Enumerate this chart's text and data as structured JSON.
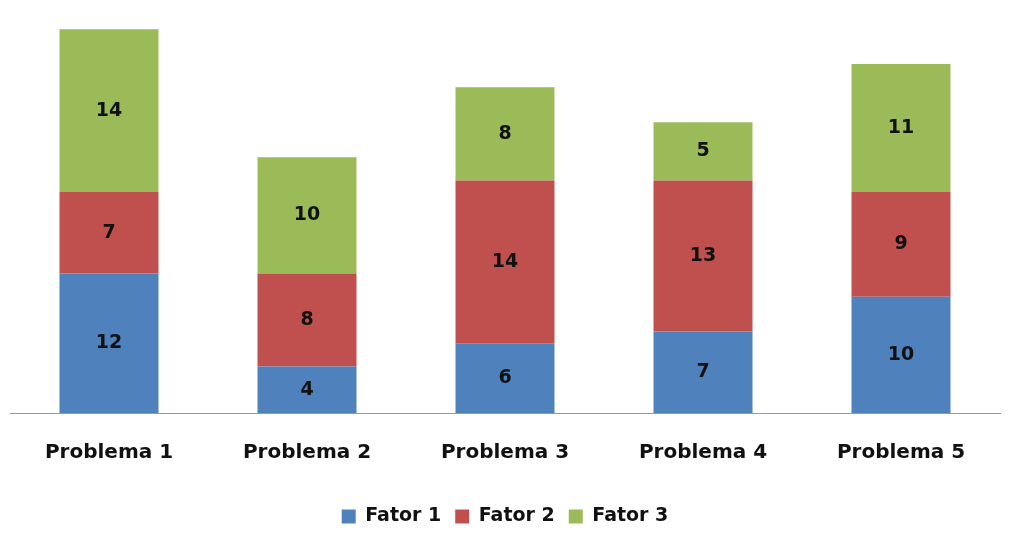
{
  "chart_data": {
    "type": "bar",
    "stacked": true,
    "categories": [
      "Problema 1",
      "Problema 2",
      "Problema 3",
      "Problema 4",
      "Problema 5"
    ],
    "series": [
      {
        "name": "Fator 1",
        "color": "#4f81bd",
        "values": [
          12,
          4,
          6,
          7,
          10
        ]
      },
      {
        "name": "Fator 2",
        "color": "#c0504d",
        "values": [
          7,
          8,
          14,
          13,
          9
        ]
      },
      {
        "name": "Fator 3",
        "color": "#9bbb59",
        "values": [
          14,
          10,
          8,
          5,
          11
        ]
      }
    ],
    "data_labels": true,
    "grid": false,
    "legend": "bottom"
  }
}
